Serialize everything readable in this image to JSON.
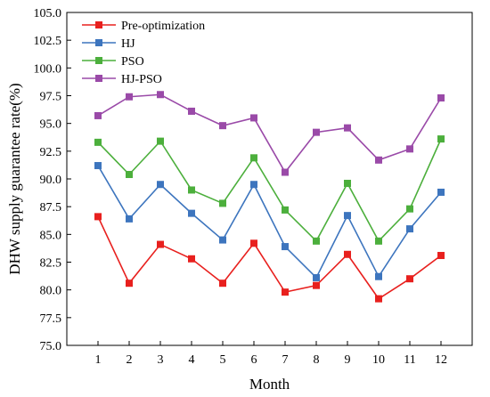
{
  "chart_data": {
    "type": "line",
    "xlabel": "Month",
    "ylabel": "DHW supply guarantee rate(%)",
    "x": [
      1,
      2,
      3,
      4,
      5,
      6,
      7,
      8,
      9,
      10,
      11,
      12
    ],
    "xticks": [
      "1",
      "2",
      "3",
      "4",
      "5",
      "6",
      "7",
      "8",
      "9",
      "10",
      "11",
      "12"
    ],
    "xlim": [
      0,
      13
    ],
    "ylim": [
      75.0,
      105.0
    ],
    "yticks": [
      "75.0",
      "77.5",
      "80.0",
      "82.5",
      "85.0",
      "87.5",
      "90.0",
      "92.5",
      "95.0",
      "97.5",
      "100.0",
      "102.5",
      "105.0"
    ],
    "grid": false,
    "legend_position": "top-left",
    "series": [
      {
        "name": "Pre-optimization",
        "color": "#e8201e",
        "marker": "square",
        "values": [
          86.6,
          80.6,
          84.1,
          82.8,
          80.6,
          84.2,
          79.8,
          80.4,
          83.2,
          79.2,
          81.0,
          83.1
        ]
      },
      {
        "name": "HJ",
        "color": "#3d75be",
        "marker": "square",
        "values": [
          91.2,
          86.4,
          89.5,
          86.9,
          84.5,
          89.5,
          83.9,
          81.1,
          86.7,
          81.2,
          85.5,
          88.8
        ]
      },
      {
        "name": "PSO",
        "color": "#4caf3c",
        "marker": "square",
        "values": [
          93.3,
          90.4,
          93.4,
          89.0,
          87.8,
          91.9,
          87.2,
          84.4,
          89.6,
          84.4,
          87.3,
          93.6
        ]
      },
      {
        "name": "HJ-PSO",
        "color": "#9a4aa8",
        "marker": "square",
        "values": [
          95.7,
          97.4,
          97.6,
          96.1,
          94.8,
          95.5,
          90.6,
          94.2,
          94.6,
          91.7,
          92.7,
          97.3
        ]
      }
    ]
  }
}
